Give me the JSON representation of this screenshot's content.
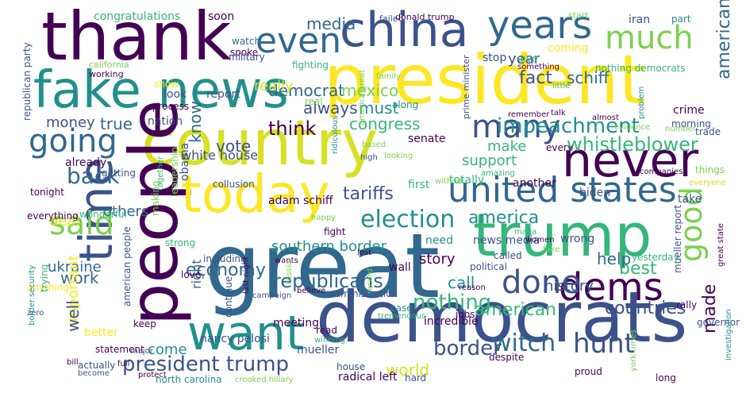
{
  "palette": {
    "purple": "#440154",
    "indigo": "#3b528b",
    "blue": "#31688e",
    "teal": "#21908d",
    "green": "#35b779",
    "lime": "#7ad151",
    "yellow": "#fde725",
    "gold": "#d6e126"
  },
  "words": [
    {
      "id": "thank",
      "text": "thank",
      "color": "#440154"
    },
    {
      "id": "china",
      "text": "china",
      "color": "#3b528b"
    },
    {
      "id": "president",
      "text": "president",
      "color": "#fde725"
    },
    {
      "id": "fake-news",
      "text": "fake news",
      "color": "#21908d"
    },
    {
      "id": "country",
      "text": "country",
      "color": "#d6e126"
    },
    {
      "id": "people",
      "text": "people",
      "color": "#440154"
    },
    {
      "id": "great",
      "text": "great",
      "color": "#31688e"
    },
    {
      "id": "democrats",
      "text": "democrats",
      "color": "#3b528b"
    },
    {
      "id": "today",
      "text": "today",
      "color": "#fde725"
    },
    {
      "id": "want",
      "text": "want",
      "color": "#21908d"
    },
    {
      "id": "trump",
      "text": "trump",
      "color": "#35b779"
    },
    {
      "id": "never",
      "text": "never",
      "color": "#440154"
    },
    {
      "id": "united-states",
      "text": "united states",
      "color": "#31688e"
    },
    {
      "id": "time",
      "text": "time",
      "color": "#3b528b"
    },
    {
      "id": "even",
      "text": "even",
      "color": "#31688e"
    },
    {
      "id": "years",
      "text": "years",
      "color": "#31688e"
    },
    {
      "id": "much",
      "text": "much",
      "color": "#7ad151"
    },
    {
      "id": "many",
      "text": "many",
      "color": "#3b528b"
    },
    {
      "id": "going",
      "text": "going",
      "color": "#31688e"
    },
    {
      "id": "said",
      "text": "said",
      "color": "#7ad151"
    },
    {
      "id": "dems",
      "text": "dems",
      "color": "#440154"
    },
    {
      "id": "done",
      "text": "done",
      "color": "#3b528b"
    },
    {
      "id": "good",
      "text": "good",
      "color": "#7ad151"
    },
    {
      "id": "witch",
      "text": "witch",
      "color": "#31688e"
    },
    {
      "id": "hunt",
      "text": "hunt",
      "color": "#3b528b"
    },
    {
      "id": "president-trump",
      "text": "president trump",
      "color": "#3b528b"
    },
    {
      "id": "impeachment",
      "text": "impeachment",
      "color": "#21908d"
    },
    {
      "id": "election",
      "text": "election",
      "color": "#21908d"
    },
    {
      "id": "back",
      "text": "back",
      "color": "#31688e"
    },
    {
      "id": "nothing",
      "text": "nothing",
      "color": "#35b779"
    },
    {
      "id": "border",
      "text": "border",
      "color": "#3b528b"
    },
    {
      "id": "economy",
      "text": "economy",
      "color": "#31688e"
    },
    {
      "id": "republicans",
      "text": "republicans",
      "color": "#31688e"
    },
    {
      "id": "whistleblower",
      "text": "whistleblower",
      "color": "#35b779"
    },
    {
      "id": "tariffs",
      "text": "tariffs",
      "color": "#3b528b"
    },
    {
      "id": "america",
      "text": "america",
      "color": "#21908d"
    },
    {
      "id": "best",
      "text": "best",
      "color": "#35b779"
    },
    {
      "id": "american",
      "text": "american",
      "color": "#35b779"
    },
    {
      "id": "countries",
      "text": "countries",
      "color": "#3b528b"
    },
    {
      "id": "democrat",
      "text": "democrat",
      "color": "#31688e"
    },
    {
      "id": "mexico",
      "text": "mexico",
      "color": "#7ad151"
    },
    {
      "id": "media",
      "text": "media",
      "color": "#31688e"
    },
    {
      "id": "really",
      "text": "really",
      "color": "#d6e126"
    },
    {
      "id": "must",
      "text": "must",
      "color": "#21908d"
    },
    {
      "id": "fact",
      "text": "fact",
      "color": "#3b528b"
    },
    {
      "id": "schiff",
      "text": "schiff",
      "color": "#31688e"
    },
    {
      "id": "always",
      "text": "always",
      "color": "#3b528b"
    },
    {
      "id": "americans",
      "text": "americans",
      "color": "#31688e"
    },
    {
      "id": "year",
      "text": "year",
      "color": "#3b528b"
    },
    {
      "id": "think",
      "text": "think",
      "color": "#440154"
    },
    {
      "id": "congress",
      "text": "congress",
      "color": "#35b779"
    },
    {
      "id": "make",
      "text": "make",
      "color": "#35b779"
    },
    {
      "id": "support",
      "text": "support",
      "color": "#35b779"
    },
    {
      "id": "vote",
      "text": "vote",
      "color": "#3b528b"
    },
    {
      "id": "true",
      "text": "true",
      "color": "#31688e"
    },
    {
      "id": "money",
      "text": "money",
      "color": "#3b528b"
    },
    {
      "id": "know",
      "text": "know",
      "color": "#31688e"
    },
    {
      "id": "deal",
      "text": "deal",
      "color": "#d6e126"
    },
    {
      "id": "others",
      "text": "others",
      "color": "#31688e"
    },
    {
      "id": "ukraine",
      "text": "ukraine",
      "color": "#31688e"
    },
    {
      "id": "work",
      "text": "work",
      "color": "#31688e"
    },
    {
      "id": "important",
      "text": "important",
      "color": "#fde725"
    },
    {
      "id": "well",
      "text": "well",
      "color": "#3b528b"
    },
    {
      "id": "call",
      "text": "call",
      "color": "#21908d"
    },
    {
      "id": "help",
      "text": "help",
      "color": "#31688e"
    },
    {
      "id": "history",
      "text": "history",
      "color": "#3b528b"
    },
    {
      "id": "story",
      "text": "story",
      "color": "#440154"
    },
    {
      "id": "made",
      "text": "made",
      "color": "#440154"
    },
    {
      "id": "world",
      "text": "world",
      "color": "#d6e126"
    },
    {
      "id": "come",
      "text": "come",
      "color": "#21908d"
    },
    {
      "id": "southern-border",
      "text": "southern border",
      "color": "#21908d"
    },
    {
      "id": "right",
      "text": "right",
      "color": "#31688e"
    },
    {
      "id": "white-house",
      "text": "white house",
      "color": "#3b528b"
    },
    {
      "id": "adam-schiff",
      "text": "adam schiff",
      "color": "#440154"
    },
    {
      "id": "nancy-pelosi",
      "text": "nancy pelosi",
      "color": "#3b528b"
    },
    {
      "id": "mueller",
      "text": "mueller",
      "color": "#3b528b"
    },
    {
      "id": "radical-left",
      "text": "radical left",
      "color": "#440154"
    },
    {
      "id": "house",
      "text": "house",
      "color": "#3b528b"
    },
    {
      "id": "hard",
      "text": "hard",
      "color": "#3b528b"
    },
    {
      "id": "congratulations",
      "text": "congratulations",
      "color": "#35b779"
    },
    {
      "id": "soon",
      "text": "soon",
      "color": "#440154"
    },
    {
      "id": "failed",
      "text": "failed",
      "color": "#3b528b"
    },
    {
      "id": "donald-trump",
      "text": "donald trump",
      "color": "#440154"
    },
    {
      "id": "start",
      "text": "start",
      "color": "#7ad151"
    },
    {
      "id": "iran",
      "text": "iran",
      "color": "#3b528b"
    },
    {
      "id": "part",
      "text": "part",
      "color": "#21908d"
    },
    {
      "id": "watch",
      "text": "watch",
      "color": "#31688e"
    },
    {
      "id": "spoke",
      "text": "spoke",
      "color": "#440154"
    },
    {
      "id": "military",
      "text": "military",
      "color": "#3b528b"
    },
    {
      "id": "fighting",
      "text": "fighting",
      "color": "#35b779"
    },
    {
      "id": "stop",
      "text": "stop",
      "color": "#3b528b"
    },
    {
      "id": "coming",
      "text": "coming",
      "color": "#fde725"
    },
    {
      "id": "give",
      "text": "give",
      "color": "#35b779"
    },
    {
      "id": "something",
      "text": "something",
      "color": "#440154"
    },
    {
      "id": "nothing-democrats",
      "text": "nothing democrats",
      "color": "#35b779"
    },
    {
      "id": "republican-party",
      "text": "republican party",
      "color": "#3b528b"
    },
    {
      "id": "california",
      "text": "california",
      "color": "#7ad151"
    },
    {
      "id": "working",
      "text": "working",
      "color": "#440154"
    },
    {
      "id": "report",
      "text": "report",
      "color": "#3b528b"
    },
    {
      "id": "show",
      "text": "show",
      "color": "#fde725"
    },
    {
      "id": "look",
      "text": "look",
      "color": "#3b528b"
    },
    {
      "id": "process",
      "text": "process",
      "color": "#440154"
    },
    {
      "id": "nation",
      "text": "nation",
      "color": "#3b528b"
    },
    {
      "id": "real",
      "text": "real",
      "color": "#7ad151"
    },
    {
      "id": "along",
      "text": "along",
      "color": "#21908d"
    },
    {
      "id": "family",
      "text": "family",
      "color": "#7ad151"
    },
    {
      "id": "america-great",
      "text": "america great",
      "color": "#7ad151"
    },
    {
      "id": "prime-minister",
      "text": "prime minister",
      "color": "#3b528b"
    },
    {
      "id": "little",
      "text": "little",
      "color": "#35b779"
    },
    {
      "id": "talk",
      "text": "talk",
      "color": "#440154"
    },
    {
      "id": "remember",
      "text": "remember",
      "color": "#440154"
    },
    {
      "id": "almost",
      "text": "almost",
      "color": "#440154"
    },
    {
      "id": "evidence",
      "text": "evidence",
      "color": "#7ad151"
    },
    {
      "id": "problem",
      "text": "problem",
      "color": "#21908d"
    },
    {
      "id": "crime",
      "text": "crime",
      "color": "#440154"
    },
    {
      "id": "morning",
      "text": "morning",
      "color": "#3b528b"
    },
    {
      "id": "number",
      "text": "number",
      "color": "#7ad151"
    },
    {
      "id": "trade",
      "text": "trade",
      "color": "#3b528b"
    },
    {
      "id": "based",
      "text": "based",
      "color": "#7ad151"
    },
    {
      "id": "ridiculous",
      "text": "ridiculous",
      "color": "#21908d"
    },
    {
      "id": "high",
      "text": "high",
      "color": "#3b528b"
    },
    {
      "id": "looking",
      "text": "looking",
      "color": "#7ad151"
    },
    {
      "id": "senate",
      "text": "senate",
      "color": "#440154"
    },
    {
      "id": "every",
      "text": "every",
      "color": "#440154"
    },
    {
      "id": "amazing",
      "text": "amazing",
      "color": "#35b779"
    },
    {
      "id": "companies",
      "text": "companies",
      "color": "#440154"
    },
    {
      "id": "things",
      "text": "things",
      "color": "#7ad151"
    },
    {
      "id": "everyone",
      "text": "everyone",
      "color": "#d6e126"
    },
    {
      "id": "already",
      "text": "already",
      "color": "#440154"
    },
    {
      "id": "getting",
      "text": "getting",
      "color": "#3b528b"
    },
    {
      "id": "obama",
      "text": "obama",
      "color": "#3b528b"
    },
    {
      "id": "leadership",
      "text": "leadership",
      "color": "#7ad151"
    },
    {
      "id": "together",
      "text": "together",
      "color": "#35b779"
    },
    {
      "id": "collusion",
      "text": "collusion",
      "color": "#3b528b"
    },
    {
      "id": "first",
      "text": "first",
      "color": "#35b779"
    },
    {
      "id": "without",
      "text": "without",
      "color": "#7ad151"
    },
    {
      "id": "totally",
      "text": "totally",
      "color": "#35b779"
    },
    {
      "id": "another",
      "text": "another",
      "color": "#440154"
    },
    {
      "id": "biden",
      "text": "biden",
      "color": "#3b528b"
    },
    {
      "id": "take",
      "text": "take",
      "color": "#3b528b"
    },
    {
      "id": "tonight",
      "text": "tonight",
      "color": "#440154"
    },
    {
      "id": "everything",
      "text": "everything",
      "color": "#440154"
    },
    {
      "id": "wonderful",
      "text": "wonderful",
      "color": "#35b779"
    },
    {
      "id": "making",
      "text": "making",
      "color": "#7ad151"
    },
    {
      "id": "happy",
      "text": "happy",
      "color": "#7ad151"
    },
    {
      "id": "fight",
      "text": "fight",
      "color": "#440154"
    },
    {
      "id": "news-media",
      "text": "news media",
      "color": "#3b528b"
    },
    {
      "id": "called",
      "text": "called",
      "color": "#3b528b"
    },
    {
      "id": "maga",
      "text": "maga",
      "color": "#35b779"
    },
    {
      "id": "women",
      "text": "women",
      "color": "#440154"
    },
    {
      "id": "wrong",
      "text": "wrong",
      "color": "#3b528b"
    },
    {
      "id": "anything",
      "text": "anything",
      "color": "#fde725"
    },
    {
      "id": "strong",
      "text": "strong",
      "color": "#35b779"
    },
    {
      "id": "including",
      "text": "including",
      "color": "#3b528b"
    },
    {
      "id": "need",
      "text": "need",
      "color": "#21908d"
    },
    {
      "id": "fake",
      "text": "fake",
      "color": "#7ad151"
    },
    {
      "id": "political",
      "text": "political",
      "color": "#3b528b"
    },
    {
      "id": "yesterday",
      "text": "yesterday",
      "color": "#35b779"
    },
    {
      "id": "mueller-report",
      "text": "mueller report",
      "color": "#3b528b"
    },
    {
      "id": "great-state",
      "text": "great state",
      "color": "#440154"
    },
    {
      "id": "love",
      "text": "love",
      "color": "#440154"
    },
    {
      "id": "continue",
      "text": "continue",
      "color": "#3b528b"
    },
    {
      "id": "last-night",
      "text": "last night",
      "color": "#440154"
    },
    {
      "id": "wants",
      "text": "wants",
      "color": "#440154"
    },
    {
      "id": "lost",
      "text": "lost",
      "color": "#440154"
    },
    {
      "id": "russia",
      "text": "russia",
      "color": "#7ad151"
    },
    {
      "id": "record",
      "text": "record",
      "color": "#7ad151"
    },
    {
      "id": "wall",
      "text": "wall",
      "color": "#440154"
    },
    {
      "id": "reason",
      "text": "reason",
      "color": "#440154"
    },
    {
      "id": "campaign",
      "text": "campaign",
      "color": "#3b528b"
    },
    {
      "id": "believe",
      "text": "believe",
      "color": "#440154"
    },
    {
      "id": "administration",
      "text": "administration",
      "color": "#3b528b"
    },
    {
      "id": "case",
      "text": "case",
      "color": "#21908d"
    },
    {
      "id": "jobs",
      "text": "jobs",
      "color": "#440154"
    },
    {
      "id": "rally",
      "text": "rally",
      "color": "#440154"
    },
    {
      "id": "governor",
      "text": "governor",
      "color": "#3b528b"
    },
    {
      "id": "american-people",
      "text": "american people",
      "color": "#3b528b"
    },
    {
      "id": "meeting",
      "text": "meeting",
      "color": "#440154"
    },
    {
      "id": "tremendous",
      "text": "tremendous",
      "color": "#35b779"
    },
    {
      "id": "despite",
      "text": "despite",
      "color": "#440154"
    },
    {
      "id": "proud",
      "text": "proud",
      "color": "#440154"
    },
    {
      "id": "read",
      "text": "read",
      "color": "#440154"
    },
    {
      "id": "winning",
      "text": "winning",
      "color": "#35b779"
    },
    {
      "id": "keep",
      "text": "keep",
      "color": "#440154"
    },
    {
      "id": "better",
      "text": "better",
      "color": "#fde725"
    },
    {
      "id": "full",
      "text": "full",
      "color": "#440154"
    },
    {
      "id": "statement",
      "text": "statement",
      "color": "#440154"
    },
    {
      "id": "actually",
      "text": "actually",
      "color": "#3b528b"
    },
    {
      "id": "north-carolina",
      "text": "north carolina",
      "color": "#21908d"
    },
    {
      "id": "crooked-hillary",
      "text": "crooked hillary",
      "color": "#7ad151"
    },
    {
      "id": "border-security",
      "text": "border security",
      "color": "#21908d"
    },
    {
      "id": "trying",
      "text": "trying",
      "color": "#35b779"
    },
    {
      "id": "bill",
      "text": "bill",
      "color": "#440154"
    },
    {
      "id": "become",
      "text": "become",
      "color": "#3b528b"
    },
    {
      "id": "protect",
      "text": "protect",
      "color": "#440154"
    },
    {
      "id": "major",
      "text": "major",
      "color": "#3b528b"
    },
    {
      "id": "zero",
      "text": "zero",
      "color": "#3b528b"
    },
    {
      "id": "long",
      "text": "long",
      "color": "#440154"
    },
    {
      "id": "york-times",
      "text": "york times",
      "color": "#7ad151"
    },
    {
      "id": "investigation",
      "text": "investigation",
      "color": "#21908d"
    },
    {
      "id": "incredible",
      "text": "incredible",
      "color": "#440154"
    }
  ]
}
